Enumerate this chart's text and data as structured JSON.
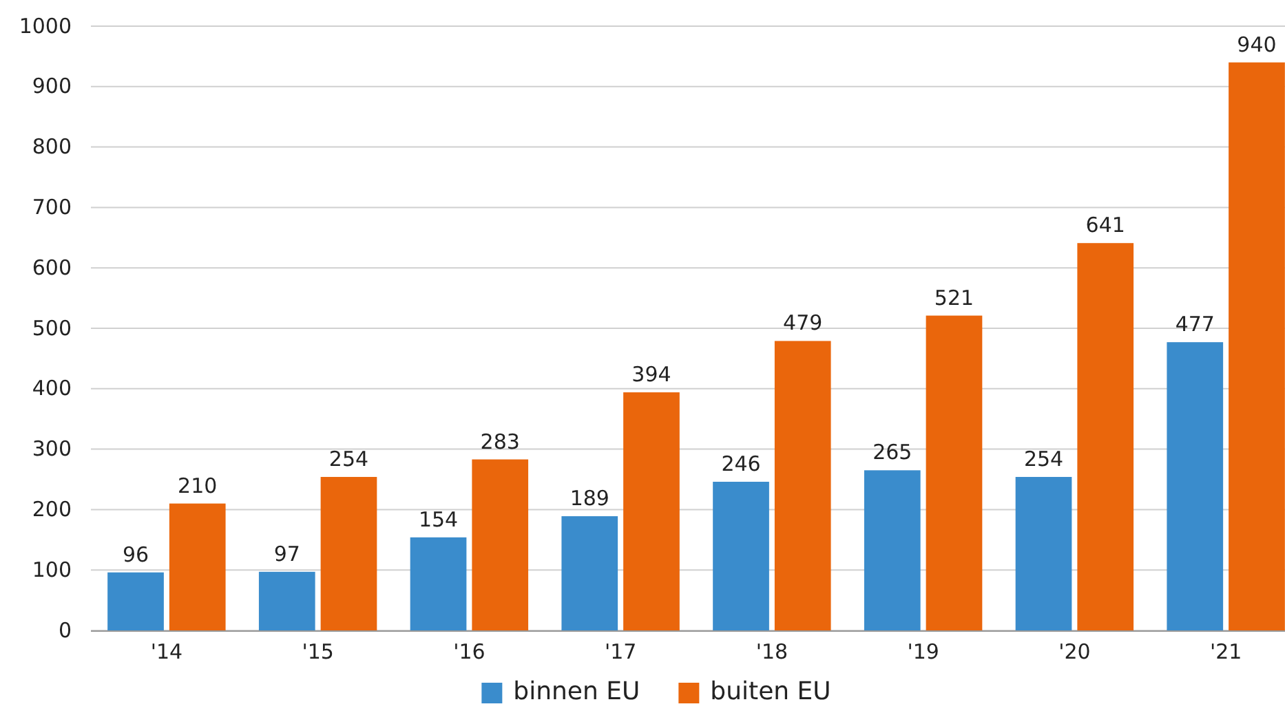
{
  "chart_data": {
    "type": "bar",
    "categories": [
      "'14",
      "'15",
      "'16",
      "'17",
      "'18",
      "'19",
      "'20",
      "'21"
    ],
    "series": [
      {
        "name": "binnen EU",
        "color": "#3a8ccc",
        "values": [
          96,
          97,
          154,
          189,
          246,
          265,
          254,
          477
        ]
      },
      {
        "name": "buiten EU",
        "color": "#ea660c",
        "values": [
          210,
          254,
          283,
          394,
          479,
          521,
          641,
          940
        ]
      }
    ],
    "ylim": [
      0,
      1000
    ],
    "yticks": [
      0,
      100,
      200,
      300,
      400,
      500,
      600,
      700,
      800,
      900,
      1000
    ],
    "grid": "y",
    "legend": "bottom",
    "data_labels": true
  }
}
